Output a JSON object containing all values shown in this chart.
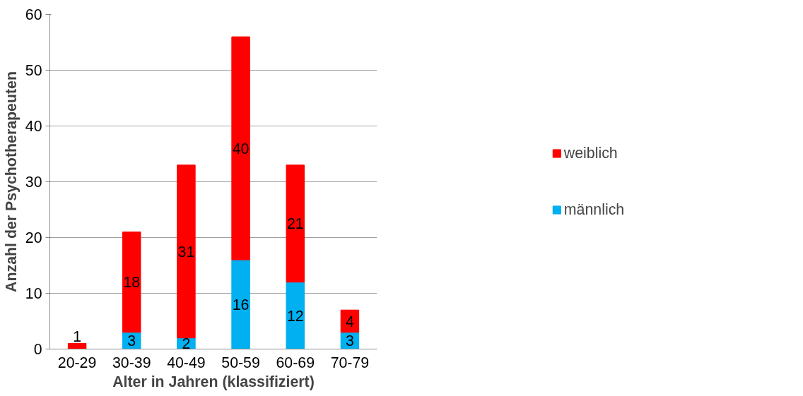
{
  "chart_data": {
    "type": "bar",
    "stacked": true,
    "xlabel": "Alter in Jahren (klassifiziert)",
    "ylabel": "Anzahl der Psychotherapeuten",
    "categories": [
      "20-29",
      "30-39",
      "40-49",
      "50-59",
      "60-69",
      "70-79"
    ],
    "series": [
      {
        "name": "männlich",
        "color": "#00b0f0",
        "values": [
          0,
          3,
          2,
          16,
          12,
          3
        ],
        "value_labels": [
          null,
          "3",
          "2",
          "16",
          "12",
          "3"
        ]
      },
      {
        "name": "weiblich",
        "color": "#ff0000",
        "values": [
          1,
          18,
          31,
          40,
          21,
          4
        ],
        "value_labels": [
          "1",
          "18",
          "31",
          "40",
          "21",
          "4"
        ]
      }
    ],
    "ylim": [
      0,
      60
    ],
    "yticks": [
      0,
      10,
      20,
      30,
      40,
      50,
      60
    ],
    "grid": "y",
    "legend": "right"
  }
}
